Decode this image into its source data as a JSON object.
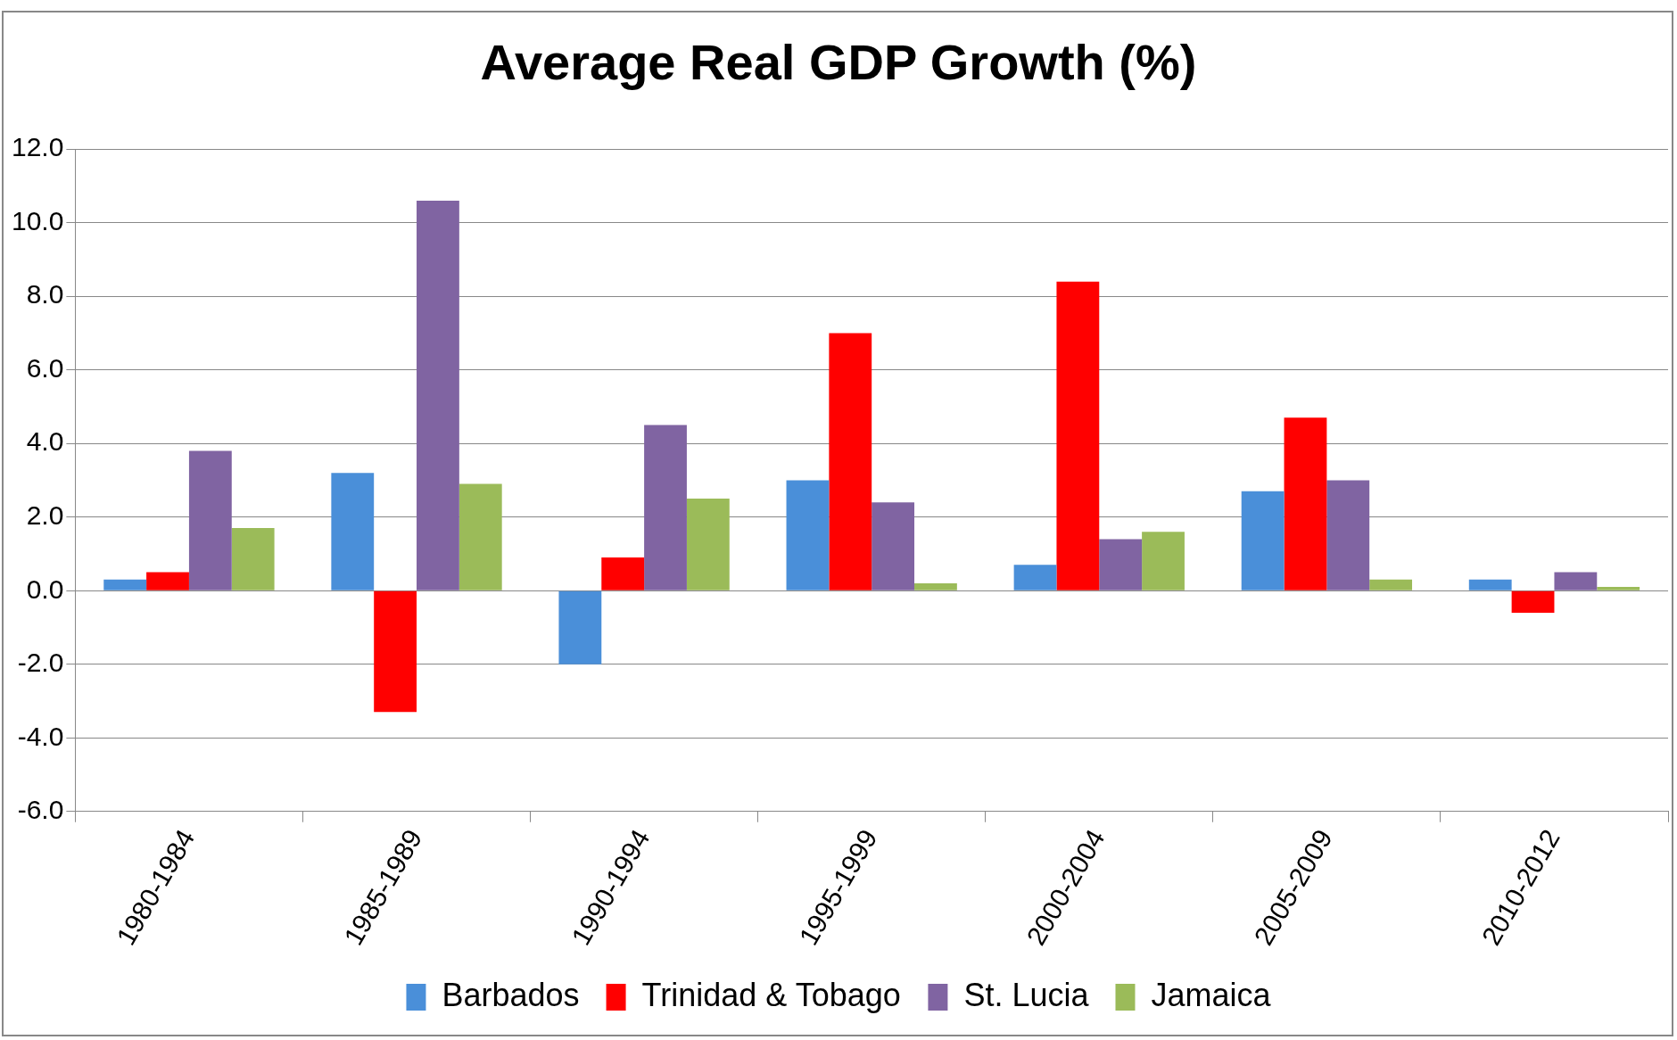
{
  "chart_data": {
    "type": "bar",
    "title": "Average Real GDP Growth (%)",
    "categories": [
      "1980-1984",
      "1985-1989",
      "1990-1994",
      "1995-1999",
      "2000-2004",
      "2005-2009",
      "2010-2012"
    ],
    "series": [
      {
        "name": "Barbados",
        "color": "#4a8fd9",
        "values": [
          0.3,
          3.2,
          -2.0,
          3.0,
          0.7,
          2.7,
          0.3
        ]
      },
      {
        "name": "Trinidad & Tobago",
        "color": "#ff0000",
        "values": [
          0.5,
          -3.3,
          0.9,
          7.0,
          8.4,
          4.7,
          -0.6
        ]
      },
      {
        "name": "St. Lucia",
        "color": "#8064a2",
        "values": [
          3.8,
          10.6,
          4.5,
          2.4,
          1.4,
          3.0,
          0.5
        ]
      },
      {
        "name": "Jamaica",
        "color": "#9bbb59",
        "values": [
          1.7,
          2.9,
          2.5,
          0.2,
          1.6,
          0.3,
          0.1
        ]
      }
    ],
    "ylim": [
      -6,
      12
    ],
    "yticks": [
      {
        "value": -6,
        "label": "-6.0"
      },
      {
        "value": -4,
        "label": "-4.0"
      },
      {
        "value": -2,
        "label": "-2.0"
      },
      {
        "value": 0,
        "label": "0.0"
      },
      {
        "value": 2,
        "label": "2.0"
      },
      {
        "value": 4,
        "label": "4.0"
      },
      {
        "value": 6,
        "label": "6.0"
      },
      {
        "value": 8,
        "label": "8.0"
      },
      {
        "value": 10,
        "label": "10.0"
      },
      {
        "value": 12,
        "label": "12.0"
      }
    ],
    "grid": "y",
    "legend": "bottom"
  }
}
